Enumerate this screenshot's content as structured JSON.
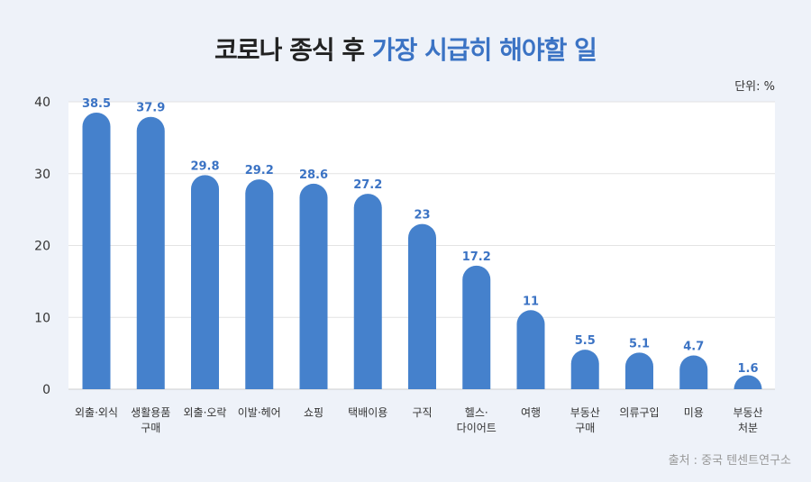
{
  "title": {
    "main": "코로나 종식 후 ",
    "accent": "가장 시급히 해야할 일"
  },
  "unit_label": "단위: %",
  "source": "출처 : 중국 텐센트연구소",
  "colors": {
    "bar": "#4581cc",
    "label": "#3b73c4",
    "accent": "#3b73c4",
    "plot_bg": "#ffffff",
    "page_bg": "#eef2f9"
  },
  "chart_data": {
    "type": "bar",
    "title": "코로나 종식 후 가장 시급히 해야할 일",
    "categories": [
      [
        "외출·외식"
      ],
      [
        "생활용품",
        "구매"
      ],
      [
        "외출·오락"
      ],
      [
        "이발·헤어"
      ],
      [
        "쇼핑"
      ],
      [
        "택배이용"
      ],
      [
        "구직"
      ],
      [
        "헬스·",
        "다이어트"
      ],
      [
        "여행"
      ],
      [
        "부동산",
        "구매"
      ],
      [
        "의류구입"
      ],
      [
        "미용"
      ],
      [
        "부동산",
        "처분"
      ]
    ],
    "values": [
      38.5,
      37.9,
      29.8,
      29.2,
      28.6,
      27.2,
      23,
      17.2,
      11,
      5.5,
      5.1,
      4.7,
      1.6
    ],
    "ylim": [
      0,
      40
    ],
    "yticks": [
      0,
      10,
      20,
      30,
      40
    ],
    "grid": true,
    "xlabel": "",
    "ylabel": ""
  }
}
